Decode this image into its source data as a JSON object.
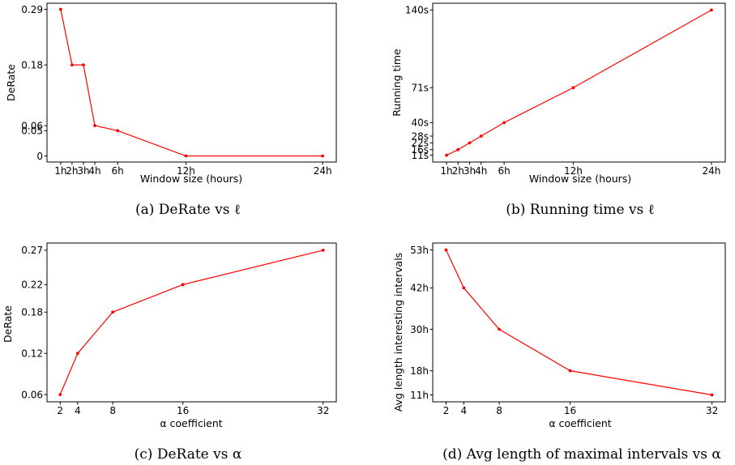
{
  "chart_data": [
    {
      "type": "line",
      "caption": "(a) DeRate vs ℓ",
      "xlabel": "Window size (hours)",
      "ylabel": "DeRate",
      "x": [
        1,
        2,
        3,
        4,
        6,
        12,
        24
      ],
      "x_tick_labels": [
        "1h",
        "2h",
        "3h",
        "4h",
        "6h",
        "12h",
        "24h"
      ],
      "y": [
        0.29,
        0.18,
        0.18,
        0.06,
        0.05,
        0,
        0
      ],
      "y_ticks": [
        0,
        0.05,
        0.06,
        0.18,
        0.29
      ],
      "y_tick_labels": [
        "0",
        "0.05",
        "0.06",
        "0.18",
        "0.29"
      ],
      "xlim": [
        -0.2,
        25.2
      ],
      "ylim": [
        -0.012,
        0.302
      ],
      "color": "#ff0000",
      "grid": false
    },
    {
      "type": "line",
      "caption": "(b) Running time vs ℓ",
      "xlabel": "Window size (hours)",
      "ylabel": "Running time",
      "x": [
        1,
        2,
        3,
        4,
        6,
        12,
        24
      ],
      "x_tick_labels": [
        "1h",
        "2h",
        "3h",
        "4h",
        "6h",
        "12h",
        "24h"
      ],
      "y": [
        11,
        16,
        22,
        28,
        40,
        71,
        140
      ],
      "y_ticks": [
        11,
        16,
        22,
        28,
        40,
        71,
        140
      ],
      "y_tick_labels": [
        "11s",
        "16s",
        "22s",
        "28s",
        "40s",
        "71s",
        "140s"
      ],
      "xlim": [
        -0.2,
        25.2
      ],
      "ylim": [
        5,
        146
      ],
      "color": "#ff0000",
      "grid": false
    },
    {
      "type": "line",
      "caption": "(c) DeRate vs α",
      "xlabel": "α coefficient",
      "ylabel": "DeRate",
      "x": [
        2,
        4,
        8,
        16,
        32
      ],
      "x_tick_labels": [
        "2",
        "4",
        "8",
        "16",
        "32"
      ],
      "y": [
        0.06,
        0.12,
        0.18,
        0.22,
        0.27
      ],
      "y_ticks": [
        0.06,
        0.12,
        0.18,
        0.22,
        0.27
      ],
      "y_tick_labels": [
        "0.06",
        "0.12",
        "0.18",
        "0.22",
        "0.27"
      ],
      "xlim": [
        0.5,
        33.5
      ],
      "ylim": [
        0.0495,
        0.2805
      ],
      "color": "#ff0000",
      "grid": false
    },
    {
      "type": "line",
      "caption": "(d) Avg length of maximal intervals vs α",
      "xlabel": "α coefficient",
      "ylabel": "Avg length interesting intervals",
      "x": [
        2,
        4,
        8,
        16,
        32
      ],
      "x_tick_labels": [
        "2",
        "4",
        "8",
        "16",
        "32"
      ],
      "y": [
        53,
        42,
        30,
        18,
        11
      ],
      "y_ticks": [
        11,
        18,
        30,
        42,
        53
      ],
      "y_tick_labels": [
        "11h",
        "18h",
        "30h",
        "42h",
        "53h"
      ],
      "xlim": [
        0.5,
        33.5
      ],
      "ylim": [
        9,
        55
      ],
      "color": "#ff0000",
      "grid": false
    }
  ]
}
